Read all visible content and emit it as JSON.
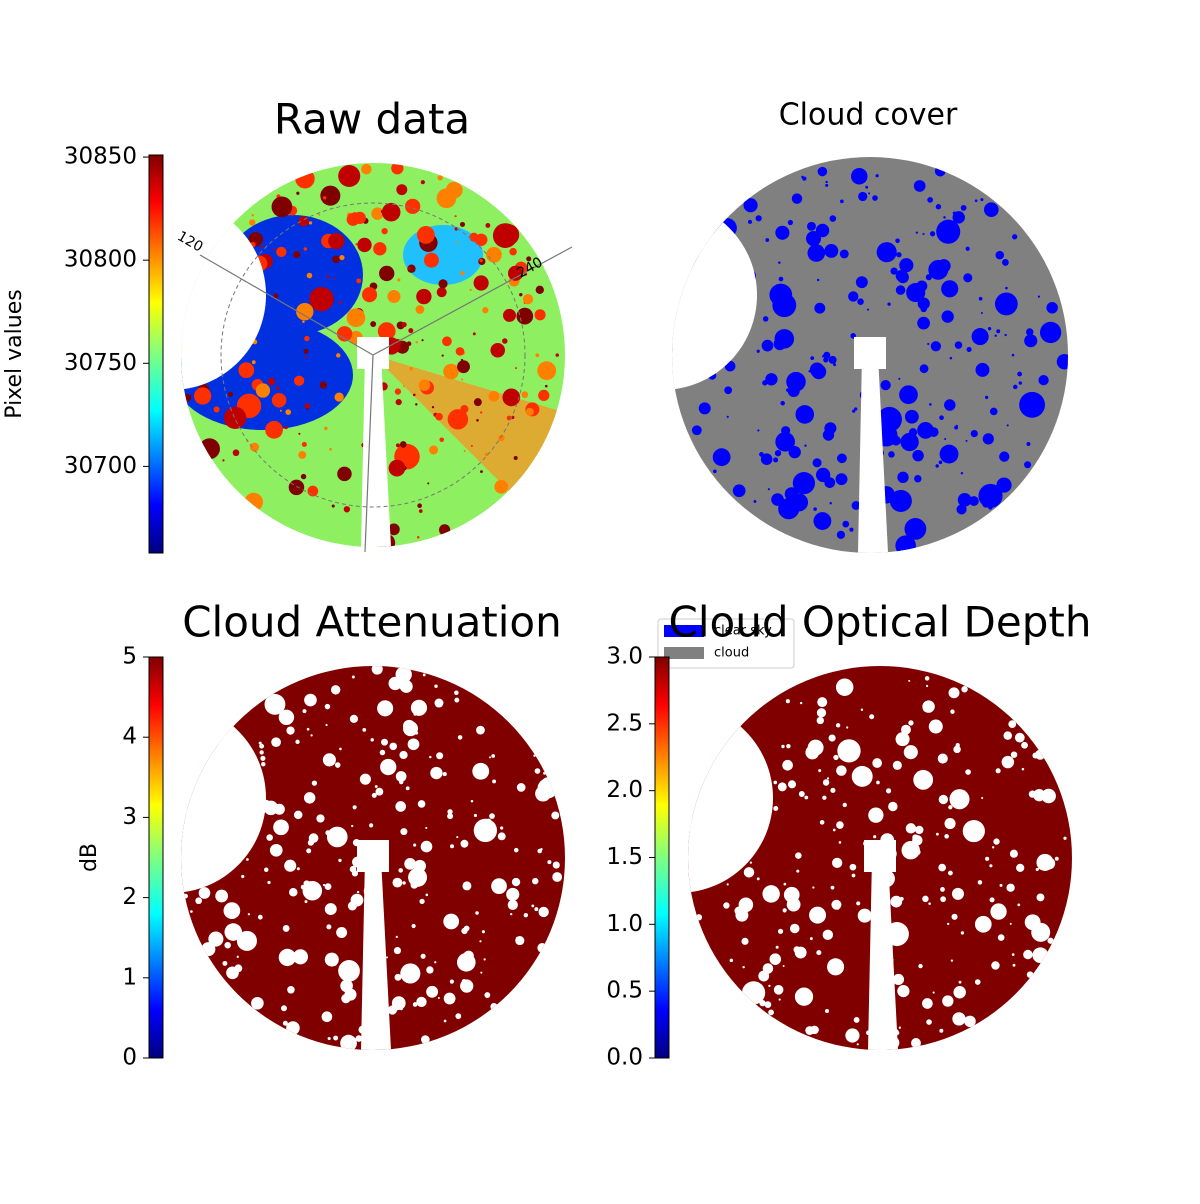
{
  "chart_data": [
    {
      "type": "image",
      "title": "Raw data",
      "colorbar_label": "Pixel values",
      "cmap": "jet",
      "ylim": [
        30658,
        30851
      ],
      "yticks": [
        30700,
        30750,
        30800,
        30850
      ],
      "annotations": [
        "120",
        "240"
      ]
    },
    {
      "type": "image",
      "title": "Cloud cover",
      "series": [
        {
          "name": "clear sky",
          "color": "#0000ff"
        },
        {
          "name": "cloud",
          "color": "#808080"
        }
      ]
    },
    {
      "type": "image",
      "title": "Cloud Attenuation",
      "colorbar_label": "dB",
      "cmap": "jet",
      "ylim": [
        0,
        5
      ],
      "yticks": [
        0,
        1,
        2,
        3,
        4,
        5
      ]
    },
    {
      "type": "image",
      "title": "Cloud Optical Depth",
      "cmap": "jet",
      "ylim": [
        0,
        3
      ],
      "yticks": [
        {
          "value": 0,
          "label": "0.0"
        },
        0.5,
        {
          "value": 1,
          "label": "1.0"
        },
        1.5,
        {
          "value": 2,
          "label": "2.0"
        },
        2.5,
        {
          "value": 3,
          "label": "3.0"
        }
      ]
    }
  ]
}
